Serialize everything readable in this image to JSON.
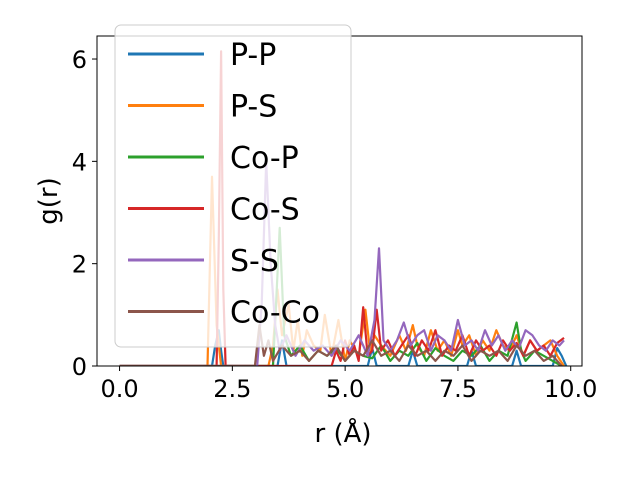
{
  "chart_data": {
    "type": "line",
    "title": "",
    "xlabel": "r (Å)",
    "ylabel": "g(r)",
    "xlim": [
      -0.5,
      10.25
    ],
    "ylim": [
      0,
      6.45
    ],
    "xticks": [
      0.0,
      2.5,
      5.0,
      7.5,
      10.0
    ],
    "xtick_labels": [
      "0.0",
      "2.5",
      "5.0",
      "7.5",
      "10.0"
    ],
    "yticks": [
      0,
      2,
      4,
      6
    ],
    "ytick_labels": [
      "0",
      "2",
      "4",
      "6"
    ],
    "grid": false,
    "legend_position": "upper-left",
    "series": [
      {
        "name": "P-P",
        "color": "#1f77b4",
        "x": [
          0,
          2.05,
          2.12,
          2.2,
          2.25,
          2.3,
          3.5,
          3.6,
          3.7,
          5.5,
          5.6,
          5.7,
          6.4,
          6.5,
          6.6,
          7.7,
          7.8,
          7.9,
          8.7,
          8.8,
          8.9,
          9.6,
          9.7,
          9.8,
          9.9
        ],
        "y": [
          0,
          0,
          0.4,
          0.7,
          0.3,
          0,
          0,
          0.5,
          0,
          0,
          0.35,
          0,
          0,
          0.3,
          0,
          0,
          0.3,
          0,
          0,
          0.3,
          0,
          0,
          0.35,
          0.2,
          0
        ]
      },
      {
        "name": "P-S",
        "color": "#ff7f0e",
        "x": [
          0,
          1.95,
          2.05,
          2.15,
          2.25,
          3.3,
          3.4,
          3.5,
          3.6,
          3.75,
          3.85,
          3.95,
          4.05,
          4.15,
          4.3,
          4.45,
          4.55,
          4.7,
          4.85,
          5.0,
          5.1,
          5.3,
          5.45,
          5.55,
          5.65,
          5.8,
          6.0,
          6.2,
          6.35,
          6.5,
          6.6,
          6.75,
          6.9,
          7.05,
          7.2,
          7.35,
          7.5,
          7.6,
          7.75,
          7.9,
          8.05,
          8.2,
          8.35,
          8.5,
          8.65,
          8.8,
          8.95,
          9.1,
          9.25,
          9.4,
          9.55,
          9.7,
          9.85
        ],
        "y": [
          0,
          0,
          3.7,
          0.8,
          0,
          0,
          0.4,
          1.5,
          0.6,
          1.2,
          0.3,
          0.9,
          0.2,
          0.7,
          0.4,
          0.3,
          1.0,
          0.2,
          0.9,
          0.1,
          0.5,
          0.2,
          1.1,
          0.3,
          0.6,
          0.4,
          0.2,
          0.6,
          0.3,
          0.8,
          0.4,
          0.2,
          0.7,
          0.3,
          0.5,
          0.2,
          0.7,
          0.4,
          0.6,
          0.2,
          0.5,
          0.3,
          0.7,
          0.4,
          0.3,
          0.6,
          0.2,
          0.5,
          0.3,
          0.4,
          0.5,
          0.2,
          0
        ]
      },
      {
        "name": "Co-P",
        "color": "#2ca02c",
        "x": [
          0,
          3.4,
          3.5,
          3.55,
          3.65,
          3.8,
          4.0,
          4.2,
          4.4,
          4.6,
          4.8,
          5.0,
          5.2,
          5.4,
          5.6,
          5.8,
          6.0,
          6.2,
          6.4,
          6.6,
          6.8,
          7.0,
          7.2,
          7.4,
          7.6,
          7.8,
          8.0,
          8.2,
          8.4,
          8.6,
          8.8,
          8.9,
          9.0,
          9.2,
          9.4,
          9.6,
          9.8
        ],
        "y": [
          0,
          0,
          1.8,
          2.7,
          0.6,
          0.2,
          0.4,
          0.1,
          0.3,
          0.2,
          0.35,
          0.1,
          0.3,
          0.2,
          0.15,
          0.4,
          0.1,
          0.3,
          0.2,
          0.45,
          0.1,
          0.35,
          0.2,
          0.1,
          0.3,
          0.2,
          0.4,
          0.1,
          0.3,
          0.2,
          0.85,
          0.3,
          0.1,
          0.3,
          0.2,
          0.1,
          0
        ]
      },
      {
        "name": "Co-S",
        "color": "#d62728",
        "x": [
          0,
          2.15,
          2.2,
          2.25,
          2.3,
          2.35,
          4.7,
          4.8,
          4.9,
          5.0,
          5.1,
          5.2,
          5.3,
          5.4,
          5.5,
          5.6,
          5.7,
          5.8,
          5.95,
          6.1,
          6.25,
          6.4,
          6.55,
          6.7,
          6.85,
          7.0,
          7.15,
          7.3,
          7.45,
          7.6,
          7.75,
          7.9,
          8.05,
          8.2,
          8.35,
          8.5,
          8.65,
          8.8,
          8.95,
          9.1,
          9.25,
          9.4,
          9.55,
          9.7,
          9.85
        ],
        "y": [
          0,
          0,
          2.5,
          6.15,
          1.5,
          0,
          0,
          0.3,
          0.1,
          0.5,
          0.2,
          0.4,
          0.1,
          1.15,
          0.2,
          0.3,
          1.1,
          0.3,
          0.5,
          0.2,
          0.4,
          0.6,
          0.2,
          0.5,
          0.3,
          0.7,
          0.2,
          0.4,
          0.3,
          0.6,
          0.2,
          0.5,
          0.3,
          0.4,
          0.2,
          0.5,
          0.3,
          0.45,
          0.2,
          0.5,
          0.3,
          0.4,
          0.2,
          0.45,
          0.55
        ]
      },
      {
        "name": "S-S",
        "color": "#9467bd",
        "x": [
          0,
          3.05,
          3.15,
          3.25,
          3.35,
          3.45,
          3.55,
          3.7,
          3.9,
          4.1,
          4.3,
          4.5,
          4.7,
          4.9,
          5.1,
          5.3,
          5.5,
          5.65,
          5.75,
          5.85,
          6.0,
          6.15,
          6.3,
          6.45,
          6.6,
          6.75,
          6.9,
          7.05,
          7.2,
          7.35,
          7.5,
          7.65,
          7.8,
          7.95,
          8.1,
          8.25,
          8.4,
          8.55,
          8.7,
          8.85,
          9.0,
          9.15,
          9.3,
          9.45,
          9.6,
          9.75,
          9.85
        ],
        "y": [
          0,
          0,
          1.2,
          4.0,
          2.0,
          0.8,
          0.3,
          0.6,
          0.2,
          0.5,
          0.3,
          0.4,
          0.2,
          0.5,
          0.3,
          0.6,
          0.2,
          0.9,
          2.3,
          0.5,
          0.3,
          0.5,
          0.85,
          0.4,
          0.6,
          0.7,
          0.3,
          0.6,
          0.5,
          0.3,
          0.9,
          0.4,
          0.5,
          0.3,
          0.7,
          0.4,
          0.6,
          0.3,
          0.5,
          0.35,
          0.7,
          0.6,
          0.4,
          0.3,
          0.5,
          0.4,
          0.5
        ]
      },
      {
        "name": "Co-Co",
        "color": "#8c564b",
        "x": [
          0,
          3.0,
          3.1,
          3.2,
          3.3,
          3.4,
          3.6,
          3.8,
          4.0,
          4.2,
          4.4,
          4.6,
          4.8,
          5.0,
          5.2,
          5.4,
          5.6,
          5.8,
          6.0,
          6.2,
          6.4,
          6.6,
          6.8,
          7.0,
          7.2,
          7.4,
          7.6,
          7.8,
          8.0,
          8.2,
          8.4,
          8.6,
          8.8,
          9.0,
          9.2,
          9.4,
          9.6,
          9.8
        ],
        "y": [
          0,
          0,
          0.8,
          0.2,
          0.5,
          0.1,
          0.4,
          0.2,
          0.3,
          0.1,
          0.3,
          0.2,
          0.4,
          0.1,
          0.3,
          0.2,
          0.5,
          0.2,
          0.3,
          0.1,
          0.4,
          0.2,
          0.3,
          0.1,
          0.3,
          0.2,
          0.4,
          0.1,
          0.3,
          0.2,
          0.3,
          0.1,
          0.4,
          0.2,
          0.3,
          0.1,
          0.2,
          0
        ]
      }
    ]
  }
}
